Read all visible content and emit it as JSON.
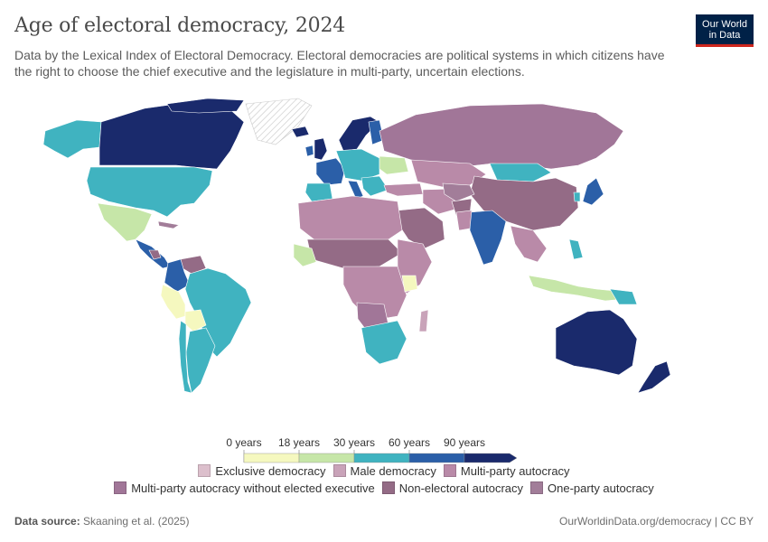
{
  "title": "Age of electoral democracy, 2024",
  "subtitle": "Data by the Lexical Index of Electoral Democracy. Electoral democracies are political systems in which citizens have the right to choose the chief executive and the legislature in multi-party, uncertain elections.",
  "logo": {
    "line1": "Our World",
    "line2": "in Data"
  },
  "legend": {
    "scale_labels": [
      "0 years",
      "18 years",
      "30 years",
      "60 years",
      "90 years"
    ],
    "scale_colors": [
      "#f5f8bf",
      "#c6e6a8",
      "#40b3c0",
      "#2b5fa8",
      "#1a2a6c"
    ],
    "categories": [
      {
        "label": "Exclusive democracy",
        "color": "#dcbfcc"
      },
      {
        "label": "Male democracy",
        "color": "#c9a3b9"
      },
      {
        "label": "Multi-party autocracy",
        "color": "#b98aa8"
      },
      {
        "label": "Multi-party autocracy without elected executive",
        "color": "#a17698"
      },
      {
        "label": "Non-electoral autocracy",
        "color": "#946b86"
      },
      {
        "label": "One-party autocracy",
        "color": "#a27d99"
      }
    ]
  },
  "footer": {
    "source_label": "Data source:",
    "source_text": "Skaaning et al. (2025)",
    "url": "OurWorldinData.org/democracy | CC BY"
  }
}
